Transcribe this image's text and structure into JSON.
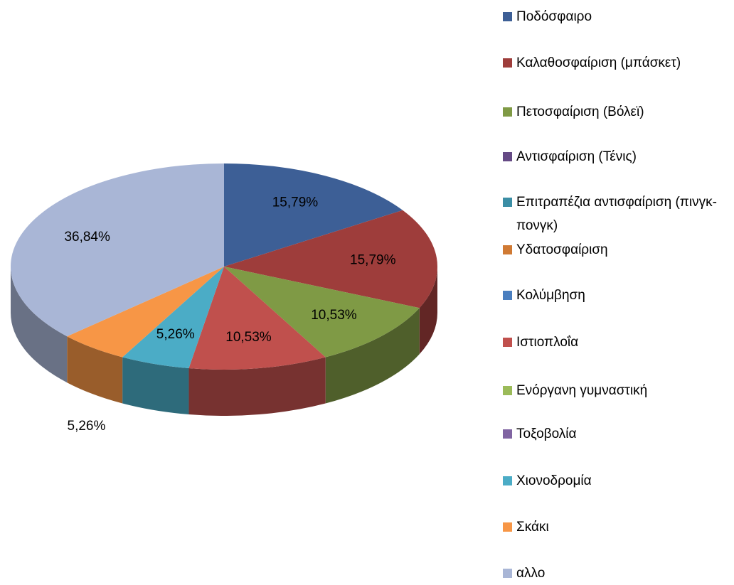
{
  "chart_data": {
    "type": "pie3d",
    "categories": [
      "Ποδόσφαιρο",
      "Καλαθοσφαίριση (μπάσκετ)",
      "Πετοσφαίριση (Βόλεϊ)",
      "Αντισφαίριση (Τένις)",
      "Επιτραπέζια αντισφαίριση (πινγκ-πονγκ)",
      "Υδατοσφαίριση",
      "Κολύμβηση",
      "Ιστιοπλοΐα",
      "Ενόργανη γυμναστική",
      "Τοξοβολία",
      "Χιονοδρομία",
      "Σκάκι",
      "αλλο"
    ],
    "values": [
      15.79,
      15.79,
      10.53,
      0,
      0,
      0,
      0,
      10.53,
      0,
      0,
      5.26,
      5.26,
      36.84
    ],
    "value_labels": [
      "15,79%",
      "15,79%",
      "10,53%",
      null,
      null,
      null,
      null,
      "10,53%",
      null,
      null,
      "5,26%",
      "5,26%",
      "36,84%"
    ],
    "colors": [
      "#3d5f96",
      "#9e3d3b",
      "#7f9a45",
      "#654a85",
      "#3b8ea5",
      "#d07a34",
      "#4a7ebf",
      "#c0504d",
      "#9bbb59",
      "#8064a2",
      "#4bacc6",
      "#f79646",
      "#a9b6d6"
    ],
    "legend": "right"
  }
}
